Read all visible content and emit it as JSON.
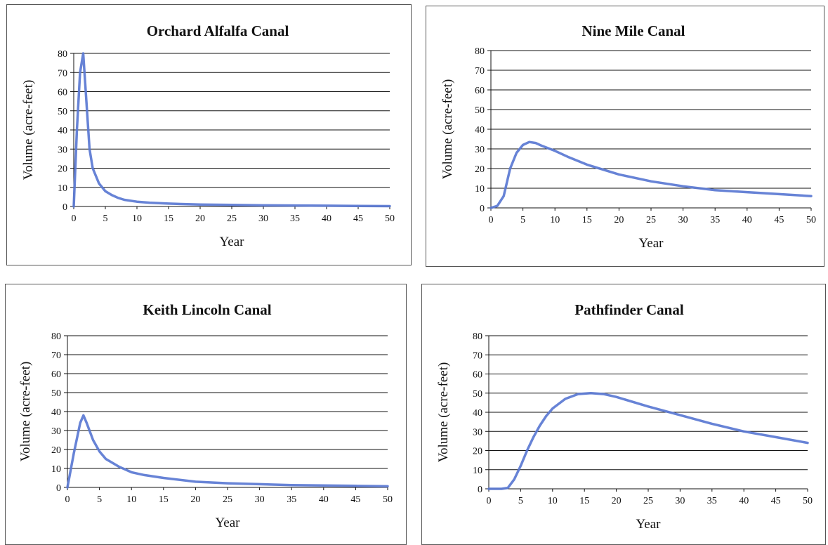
{
  "chart_data": [
    {
      "type": "line",
      "title": "Orchard Alfalfa Canal",
      "xlabel": "Year",
      "ylabel": "Volume (acre-feet)",
      "xlim": [
        0,
        50
      ],
      "ylim": [
        0,
        80
      ],
      "xticks": [
        0,
        5,
        10,
        15,
        20,
        25,
        30,
        35,
        40,
        45,
        50
      ],
      "yticks": [
        0,
        10,
        20,
        30,
        40,
        50,
        60,
        70,
        80
      ],
      "grid": "horizontal",
      "series_color": "#5a78d2",
      "x": [
        0,
        0.5,
        1,
        1.5,
        2,
        2.5,
        3,
        4,
        5,
        6,
        7,
        8,
        10,
        12,
        15,
        20,
        25,
        30,
        35,
        40,
        45,
        50
      ],
      "y": [
        0,
        40,
        70,
        80,
        55,
        30,
        20,
        12,
        8,
        6,
        4.5,
        3.5,
        2.5,
        2,
        1.5,
        1,
        0.8,
        0.6,
        0.5,
        0.4,
        0.3,
        0.2
      ]
    },
    {
      "type": "line",
      "title": "Nine Mile Canal",
      "xlabel": "Year",
      "ylabel": "Volume (acre-feet)",
      "xlim": [
        0,
        50
      ],
      "ylim": [
        0,
        80
      ],
      "xticks": [
        0,
        5,
        10,
        15,
        20,
        25,
        30,
        35,
        40,
        45,
        50
      ],
      "yticks": [
        0,
        10,
        20,
        30,
        40,
        50,
        60,
        70,
        80
      ],
      "grid": "horizontal",
      "series_color": "#5a78d2",
      "x": [
        0,
        1,
        2,
        3,
        4,
        5,
        6,
        7,
        8,
        10,
        12,
        15,
        20,
        25,
        30,
        35,
        40,
        45,
        50
      ],
      "y": [
        0,
        1,
        6,
        20,
        28,
        32,
        33.5,
        33,
        31.5,
        29,
        26,
        22,
        17,
        13.5,
        11,
        9,
        8,
        7,
        6
      ]
    },
    {
      "type": "line",
      "title": "Keith Lincoln Canal",
      "xlabel": "Year",
      "ylabel": "Volume (acre-feet)",
      "xlim": [
        0,
        50
      ],
      "ylim": [
        0,
        80
      ],
      "xticks": [
        0,
        5,
        10,
        15,
        20,
        25,
        30,
        35,
        40,
        45,
        50
      ],
      "yticks": [
        0,
        10,
        20,
        30,
        40,
        50,
        60,
        70,
        80
      ],
      "grid": "horizontal",
      "series_color": "#5a78d2",
      "x": [
        0,
        1,
        2,
        2.5,
        3,
        4,
        5,
        6,
        8,
        10,
        12,
        15,
        20,
        25,
        30,
        35,
        40,
        45,
        50
      ],
      "y": [
        0,
        18,
        34,
        38,
        34,
        25,
        19,
        15,
        11,
        8,
        6.5,
        5,
        3,
        2.2,
        1.7,
        1.2,
        1,
        0.8,
        0.6
      ]
    },
    {
      "type": "line",
      "title": "Pathfinder Canal",
      "xlabel": "Year",
      "ylabel": "Volume (acre-feet)",
      "xlim": [
        0,
        50
      ],
      "ylim": [
        0,
        80
      ],
      "xticks": [
        0,
        5,
        10,
        15,
        20,
        25,
        30,
        35,
        40,
        45,
        50
      ],
      "yticks": [
        0,
        10,
        20,
        30,
        40,
        50,
        60,
        70,
        80
      ],
      "grid": "horizontal",
      "series_color": "#5a78d2",
      "x": [
        0,
        1,
        2,
        3,
        4,
        5,
        6,
        7,
        8,
        9,
        10,
        12,
        14,
        16,
        18,
        20,
        25,
        30,
        35,
        40,
        45,
        50
      ],
      "y": [
        0,
        0,
        0,
        0.5,
        5,
        12,
        20,
        27,
        33,
        38,
        42,
        47,
        49.5,
        50,
        49.5,
        48,
        43,
        38.5,
        34,
        30,
        27,
        24
      ]
    }
  ]
}
